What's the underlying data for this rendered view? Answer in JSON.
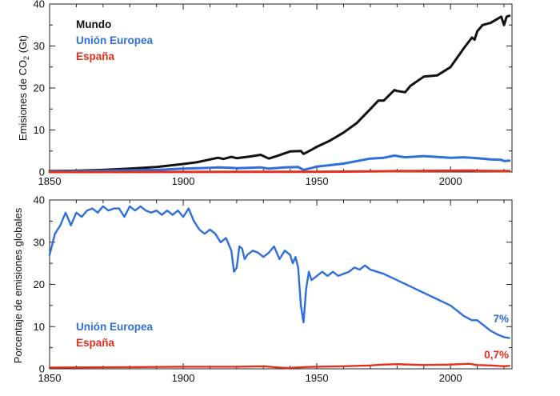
{
  "chart_data": [
    {
      "type": "line",
      "panel": "top",
      "ylabel_main": "Emisiones de CO",
      "ylabel_sub": "2",
      "ylabel_unit": " (Gt)",
      "xlim": [
        1850,
        2023
      ],
      "ylim": [
        0,
        40
      ],
      "xticks": [
        1850,
        1900,
        1950,
        2000
      ],
      "yticks": [
        0,
        10,
        20,
        30,
        40
      ],
      "legend": [
        {
          "label": "Mundo",
          "color": "#111111"
        },
        {
          "label": "Unión Europea",
          "color": "#2f6fdc"
        },
        {
          "label": "España",
          "color": "#e0301e"
        }
      ],
      "series": [
        {
          "name": "Mundo",
          "color": "#111111",
          "x": [
            1850,
            1860,
            1870,
            1880,
            1890,
            1900,
            1905,
            1910,
            1913,
            1915,
            1918,
            1920,
            1925,
            1929,
            1932,
            1935,
            1940,
            1944,
            1945,
            1946,
            1950,
            1955,
            1960,
            1965,
            1970,
            1973,
            1975,
            1979,
            1980,
            1983,
            1985,
            1990,
            1995,
            2000,
            2005,
            2008,
            2009,
            2010,
            2012,
            2015,
            2019,
            2020,
            2021,
            2022
          ],
          "y": [
            0.2,
            0.3,
            0.5,
            0.8,
            1.2,
            1.9,
            2.3,
            3.0,
            3.4,
            3.1,
            3.6,
            3.3,
            3.7,
            4.1,
            3.2,
            3.8,
            4.9,
            5.0,
            4.3,
            4.6,
            6.0,
            7.5,
            9.4,
            11.7,
            15.0,
            17.0,
            17.0,
            19.5,
            19.3,
            19.0,
            20.5,
            22.7,
            23.0,
            25.0,
            29.5,
            32.0,
            31.5,
            33.5,
            35.0,
            35.5,
            37.0,
            35.0,
            37.0,
            37.2
          ]
        },
        {
          "name": "Unión Europea",
          "color": "#2f6fdc",
          "x": [
            1850,
            1870,
            1890,
            1900,
            1910,
            1913,
            1918,
            1920,
            1929,
            1932,
            1938,
            1943,
            1945,
            1947,
            1950,
            1960,
            1970,
            1975,
            1979,
            1983,
            1990,
            2000,
            2005,
            2010,
            2015,
            2019,
            2020,
            2022
          ],
          "y": [
            0.1,
            0.3,
            0.5,
            0.8,
            1.0,
            1.1,
            1.0,
            0.9,
            1.1,
            0.8,
            1.1,
            1.2,
            0.5,
            0.8,
            1.3,
            2.0,
            3.2,
            3.4,
            3.9,
            3.5,
            3.8,
            3.4,
            3.5,
            3.3,
            3.0,
            2.9,
            2.6,
            2.7
          ]
        },
        {
          "name": "España",
          "color": "#e0301e",
          "x": [
            1850,
            1900,
            1930,
            1950,
            1970,
            1980,
            2000,
            2007,
            2010,
            2020,
            2022
          ],
          "y": [
            0.0,
            0.02,
            0.03,
            0.05,
            0.15,
            0.2,
            0.3,
            0.36,
            0.28,
            0.2,
            0.22
          ]
        }
      ]
    },
    {
      "type": "line",
      "panel": "bottom",
      "ylabel": "Porcentaje de emisiones globales",
      "xlim": [
        1850,
        2023
      ],
      "ylim": [
        0,
        40
      ],
      "xticks": [
        1850,
        1900,
        1950,
        2000
      ],
      "yticks": [
        0,
        10,
        20,
        30,
        40
      ],
      "legend": [
        {
          "label": "Unión Europea",
          "color": "#2f6fdc"
        },
        {
          "label": "España",
          "color": "#e0301e"
        }
      ],
      "end_labels": [
        {
          "text": "7%",
          "series": "Unión Europea",
          "color": "#2f6fdc"
        },
        {
          "text": "0,7%",
          "series": "España",
          "color": "#e0301e"
        }
      ],
      "series": [
        {
          "name": "Unión Europea",
          "color": "#2f6fdc",
          "x": [
            1850,
            1852,
            1854,
            1856,
            1858,
            1860,
            1862,
            1864,
            1866,
            1868,
            1870,
            1872,
            1874,
            1876,
            1878,
            1880,
            1882,
            1884,
            1886,
            1888,
            1890,
            1892,
            1894,
            1896,
            1898,
            1900,
            1902,
            1904,
            1906,
            1908,
            1910,
            1912,
            1914,
            1916,
            1918,
            1919,
            1920,
            1921,
            1922,
            1923,
            1924,
            1926,
            1928,
            1930,
            1932,
            1934,
            1936,
            1938,
            1940,
            1941,
            1942,
            1943,
            1944,
            1945,
            1946,
            1947,
            1948,
            1950,
            1952,
            1954,
            1956,
            1958,
            1960,
            1962,
            1964,
            1966,
            1968,
            1970,
            1975,
            1980,
            1985,
            1990,
            1995,
            2000,
            2005,
            2008,
            2010,
            2012,
            2015,
            2018,
            2020,
            2022
          ],
          "y": [
            27,
            32,
            34,
            37,
            34,
            37,
            36,
            37.5,
            38,
            37,
            38.5,
            37.5,
            38,
            38,
            36,
            38.5,
            37.5,
            38.5,
            37.5,
            37,
            37.5,
            36.5,
            37.5,
            36.5,
            37.5,
            36,
            38,
            35,
            33,
            32,
            33,
            32,
            30,
            31,
            28,
            23,
            24,
            29,
            28.5,
            26,
            27,
            28,
            27.5,
            26.5,
            27.5,
            29,
            26,
            28,
            27,
            25,
            26.5,
            24,
            15,
            11,
            19,
            23,
            21,
            22,
            23,
            22,
            23,
            22,
            22.5,
            23,
            24,
            23.5,
            24.5,
            23.5,
            22.5,
            21,
            19.5,
            18,
            16.5,
            15,
            12.5,
            11.5,
            11.5,
            10.5,
            9,
            8,
            7.5,
            7.3
          ]
        },
        {
          "name": "España",
          "color": "#e0301e",
          "x": [
            1850,
            1880,
            1900,
            1920,
            1930,
            1936,
            1939,
            1945,
            1950,
            1960,
            1970,
            1975,
            1980,
            1990,
            2000,
            2007,
            2010,
            2015,
            2020,
            2022
          ],
          "y": [
            0.3,
            0.4,
            0.5,
            0.5,
            0.6,
            0.3,
            0.2,
            0.4,
            0.5,
            0.6,
            0.8,
            1.0,
            1.1,
            0.9,
            1.0,
            1.2,
            0.9,
            0.8,
            0.6,
            0.7
          ]
        }
      ]
    }
  ]
}
